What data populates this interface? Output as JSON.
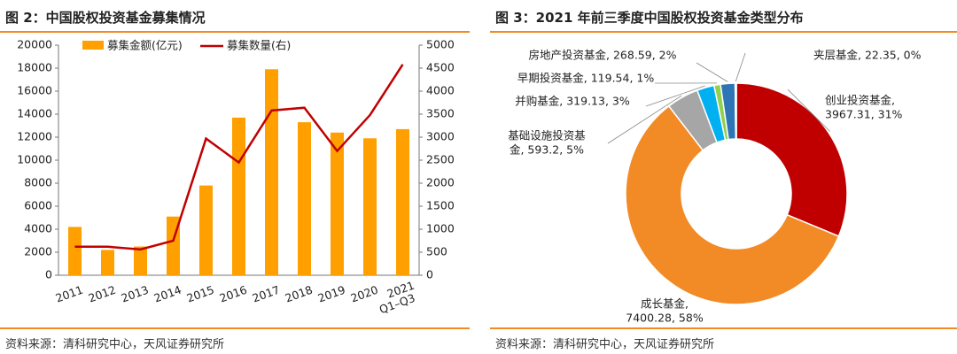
{
  "left_figure": {
    "title": "图 2：中国股权投资基金募集情况",
    "source": "资料来源：清科研究中心，天风证券研究所"
  },
  "right_figure": {
    "title": "图 3：2021 年前三季度中国股权投资基金类型分布",
    "source": "资料来源：清科研究中心，天风证券研究所"
  },
  "colors": {
    "accent_rule": "#f08a24",
    "bar": "#ffa000",
    "line": "#c00000",
    "pie": [
      "#c00000",
      "#f28a26",
      "#a6a6a6",
      "#00b0f0",
      "#92d050",
      "#2e75b6",
      "#1f4e79"
    ]
  },
  "chart_data": [
    {
      "type": "bar",
      "title": "",
      "categories": [
        "2011",
        "2012",
        "2013",
        "2014",
        "2015",
        "2016",
        "2017",
        "2018",
        "2019",
        "2020",
        "2021 Q1–Q3"
      ],
      "series": [
        {
          "name": "募集金额(亿元)",
          "type": "bar",
          "axis": "left",
          "values": [
            4200,
            2200,
            2500,
            5100,
            7800,
            13700,
            17900,
            13300,
            12400,
            11900,
            12700
          ]
        },
        {
          "name": "募集数量(右)",
          "type": "line",
          "axis": "right",
          "values": [
            620,
            620,
            560,
            750,
            2970,
            2450,
            3580,
            3640,
            2700,
            3480,
            4580
          ]
        }
      ],
      "y_left": {
        "lim": [
          0,
          20000
        ],
        "ticks": [
          0,
          2000,
          4000,
          6000,
          8000,
          10000,
          12000,
          14000,
          16000,
          18000,
          20000
        ]
      },
      "y_right": {
        "lim": [
          0,
          5000
        ],
        "ticks": [
          0,
          500,
          1000,
          1500,
          2000,
          2500,
          3000,
          3500,
          4000,
          4500,
          5000
        ]
      },
      "legend_position": "top-left",
      "grid": false
    },
    {
      "type": "pie",
      "donut": true,
      "slices": [
        {
          "name": "创业投资基金",
          "value": 3967.31,
          "pct": "31%",
          "label_lines": [
            "创业投资基金,",
            "3967.31, 31%"
          ]
        },
        {
          "name": "成长基金",
          "value": 7400.28,
          "pct": "58%",
          "label_lines": [
            "成长基金,",
            "7400.28, 58%"
          ]
        },
        {
          "name": "基础设施投资基金",
          "value": 593.2,
          "pct": "5%",
          "label_lines": [
            "基础设施投资基",
            "金, 593.2, 5%"
          ]
        },
        {
          "name": "并购基金",
          "value": 319.13,
          "pct": "3%",
          "label_lines": [
            "并购基金, 319.13, 3%"
          ]
        },
        {
          "name": "早期投资基金",
          "value": 119.54,
          "pct": "1%",
          "label_lines": [
            "早期投资基金, 119.54, 1%"
          ]
        },
        {
          "name": "房地产投资基金",
          "value": 268.59,
          "pct": "2%",
          "label_lines": [
            "房地产投资基金, 268.59, 2%"
          ]
        },
        {
          "name": "夹层基金",
          "value": 22.35,
          "pct": "0%",
          "label_lines": [
            "夹层基金, 22.35, 0%"
          ]
        }
      ]
    }
  ]
}
